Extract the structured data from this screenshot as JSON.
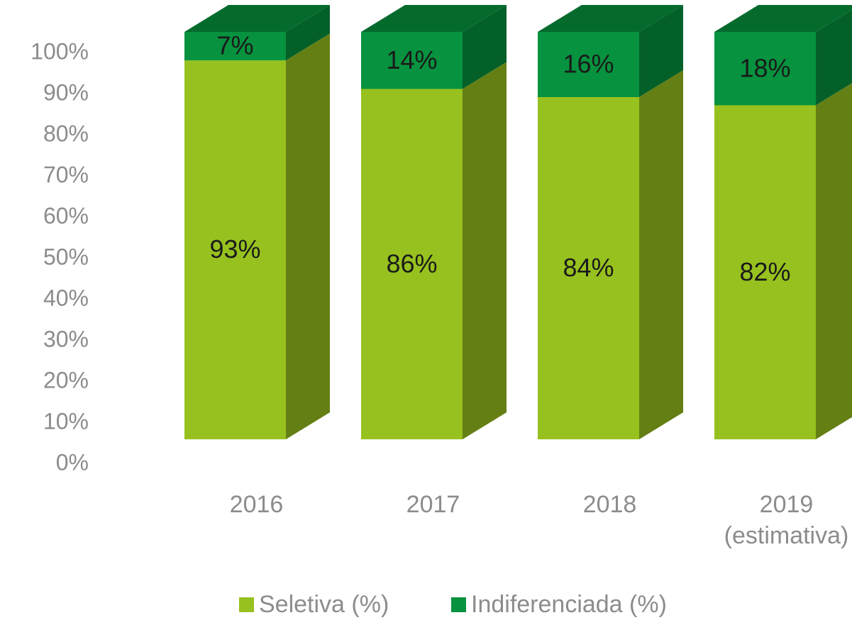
{
  "chart_data": {
    "type": "bar3d_stacked",
    "categories": [
      "2016",
      "2017",
      "2018",
      "2019\n(estimativa)"
    ],
    "series": [
      {
        "name": "Seletiva (%)",
        "color": "#97c11f",
        "values": [
          93,
          86,
          84,
          82
        ],
        "value_labels": [
          "93%",
          "86%",
          "84%",
          "82%"
        ]
      },
      {
        "name": "Indiferenciada (%)",
        "color": "#06923e",
        "values": [
          7,
          14,
          16,
          18
        ],
        "value_labels": [
          "7%",
          "14%",
          "16%",
          "18%"
        ]
      }
    ],
    "ylim": [
      0,
      100
    ],
    "yticks": [
      {
        "value": 0,
        "label": "0%"
      },
      {
        "value": 10,
        "label": "10%"
      },
      {
        "value": 20,
        "label": "20%"
      },
      {
        "value": 30,
        "label": "30%"
      },
      {
        "value": 40,
        "label": "40%"
      },
      {
        "value": 50,
        "label": "50%"
      },
      {
        "value": 60,
        "label": "60%"
      },
      {
        "value": 70,
        "label": "70%"
      },
      {
        "value": 80,
        "label": "80%"
      },
      {
        "value": 90,
        "label": "90%"
      },
      {
        "value": 100,
        "label": "100%"
      }
    ],
    "legend": "bottom"
  }
}
